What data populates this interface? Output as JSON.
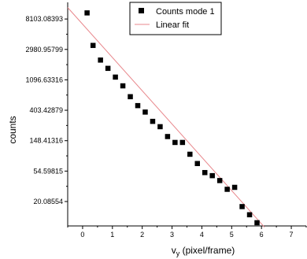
{
  "chart_data": {
    "type": "scatter",
    "title": "",
    "xlabel": "v",
    "xlabel_sub": "y",
    "xlabel_suffix": " (pixel/frame)",
    "ylabel": "counts",
    "xlim": [
      -0.5,
      7.5
    ],
    "y_scale": "log",
    "ylim": [
      9,
      14000
    ],
    "x_ticks": [
      0,
      1,
      2,
      3,
      4,
      5,
      6,
      7
    ],
    "y_ticks": [
      {
        "value": 20.08554,
        "label": "20.08554"
      },
      {
        "value": 54.59815,
        "label": "54.59815"
      },
      {
        "value": 148.41316,
        "label": "148.41316"
      },
      {
        "value": 403.42879,
        "label": "403.42879"
      },
      {
        "value": 1096.63316,
        "label": "1096.63316"
      },
      {
        "value": 2980.95799,
        "label": "2980.95799"
      },
      {
        "value": 8103.08393,
        "label": "8103.08393"
      }
    ],
    "grid": false,
    "legend_position": "top-center",
    "series": [
      {
        "name": "Counts  mode 1",
        "kind": "scatter",
        "marker": "square",
        "color": "#000000",
        "x": [
          0.15,
          0.35,
          0.6,
          0.85,
          1.1,
          1.35,
          1.6,
          1.85,
          2.1,
          2.35,
          2.6,
          2.85,
          3.1,
          3.35,
          3.6,
          3.85,
          4.1,
          4.35,
          4.6,
          4.85,
          5.1,
          5.35,
          5.6,
          5.85
        ],
        "y": [
          9900,
          3400,
          2100,
          1600,
          1200,
          900,
          630,
          470,
          380,
          280,
          235,
          170,
          140,
          140,
          95,
          70,
          52,
          47,
          40,
          30,
          32,
          17,
          13,
          10
        ]
      },
      {
        "name": "Linear fit",
        "kind": "line",
        "color": "#e8878c",
        "x": [
          -0.5,
          6.1
        ],
        "y": [
          11790,
          8.64
        ]
      }
    ]
  }
}
